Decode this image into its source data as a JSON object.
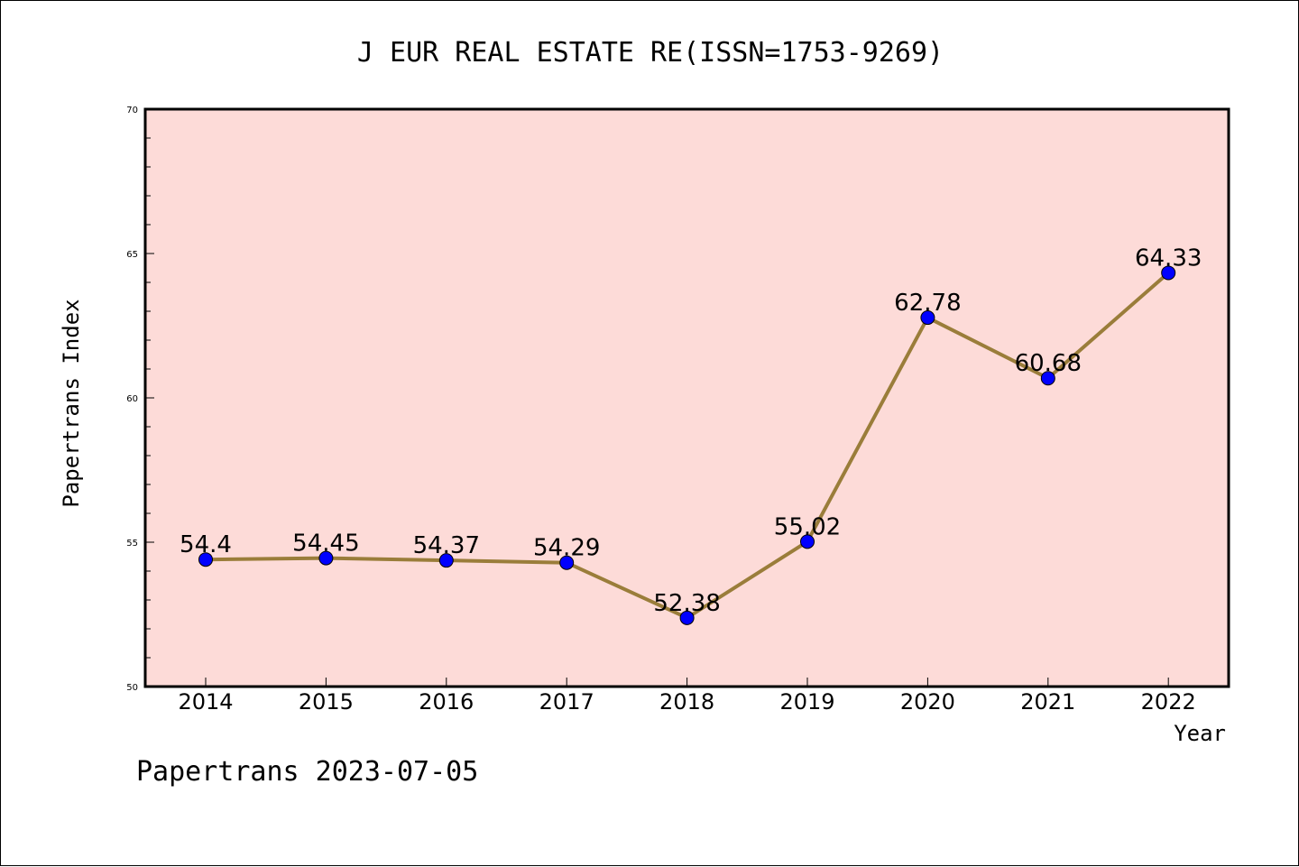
{
  "chart_data": {
    "type": "line",
    "title": "J EUR REAL ESTATE RE(ISSN=1753-9269)",
    "xlabel": "Year",
    "ylabel": "Papertrans Index",
    "categories": [
      "2014",
      "2015",
      "2016",
      "2017",
      "2018",
      "2019",
      "2020",
      "2021",
      "2022"
    ],
    "values": [
      54.4,
      54.45,
      54.37,
      54.29,
      52.38,
      55.02,
      62.78,
      60.68,
      64.33
    ],
    "data_labels": [
      "54.4",
      "54.45",
      "54.37",
      "54.29",
      "52.38",
      "55.02",
      "62.78",
      "60.68",
      "64.33"
    ],
    "y_ticks": [
      "50",
      "55",
      "60",
      "65",
      "70"
    ],
    "ylim": [
      50,
      70
    ],
    "grid": false,
    "colors": {
      "plot_background": "#fddbd8",
      "line": "#9a7d3a",
      "marker": "#0000ff"
    }
  },
  "footer": "Papertrans 2023-07-05"
}
